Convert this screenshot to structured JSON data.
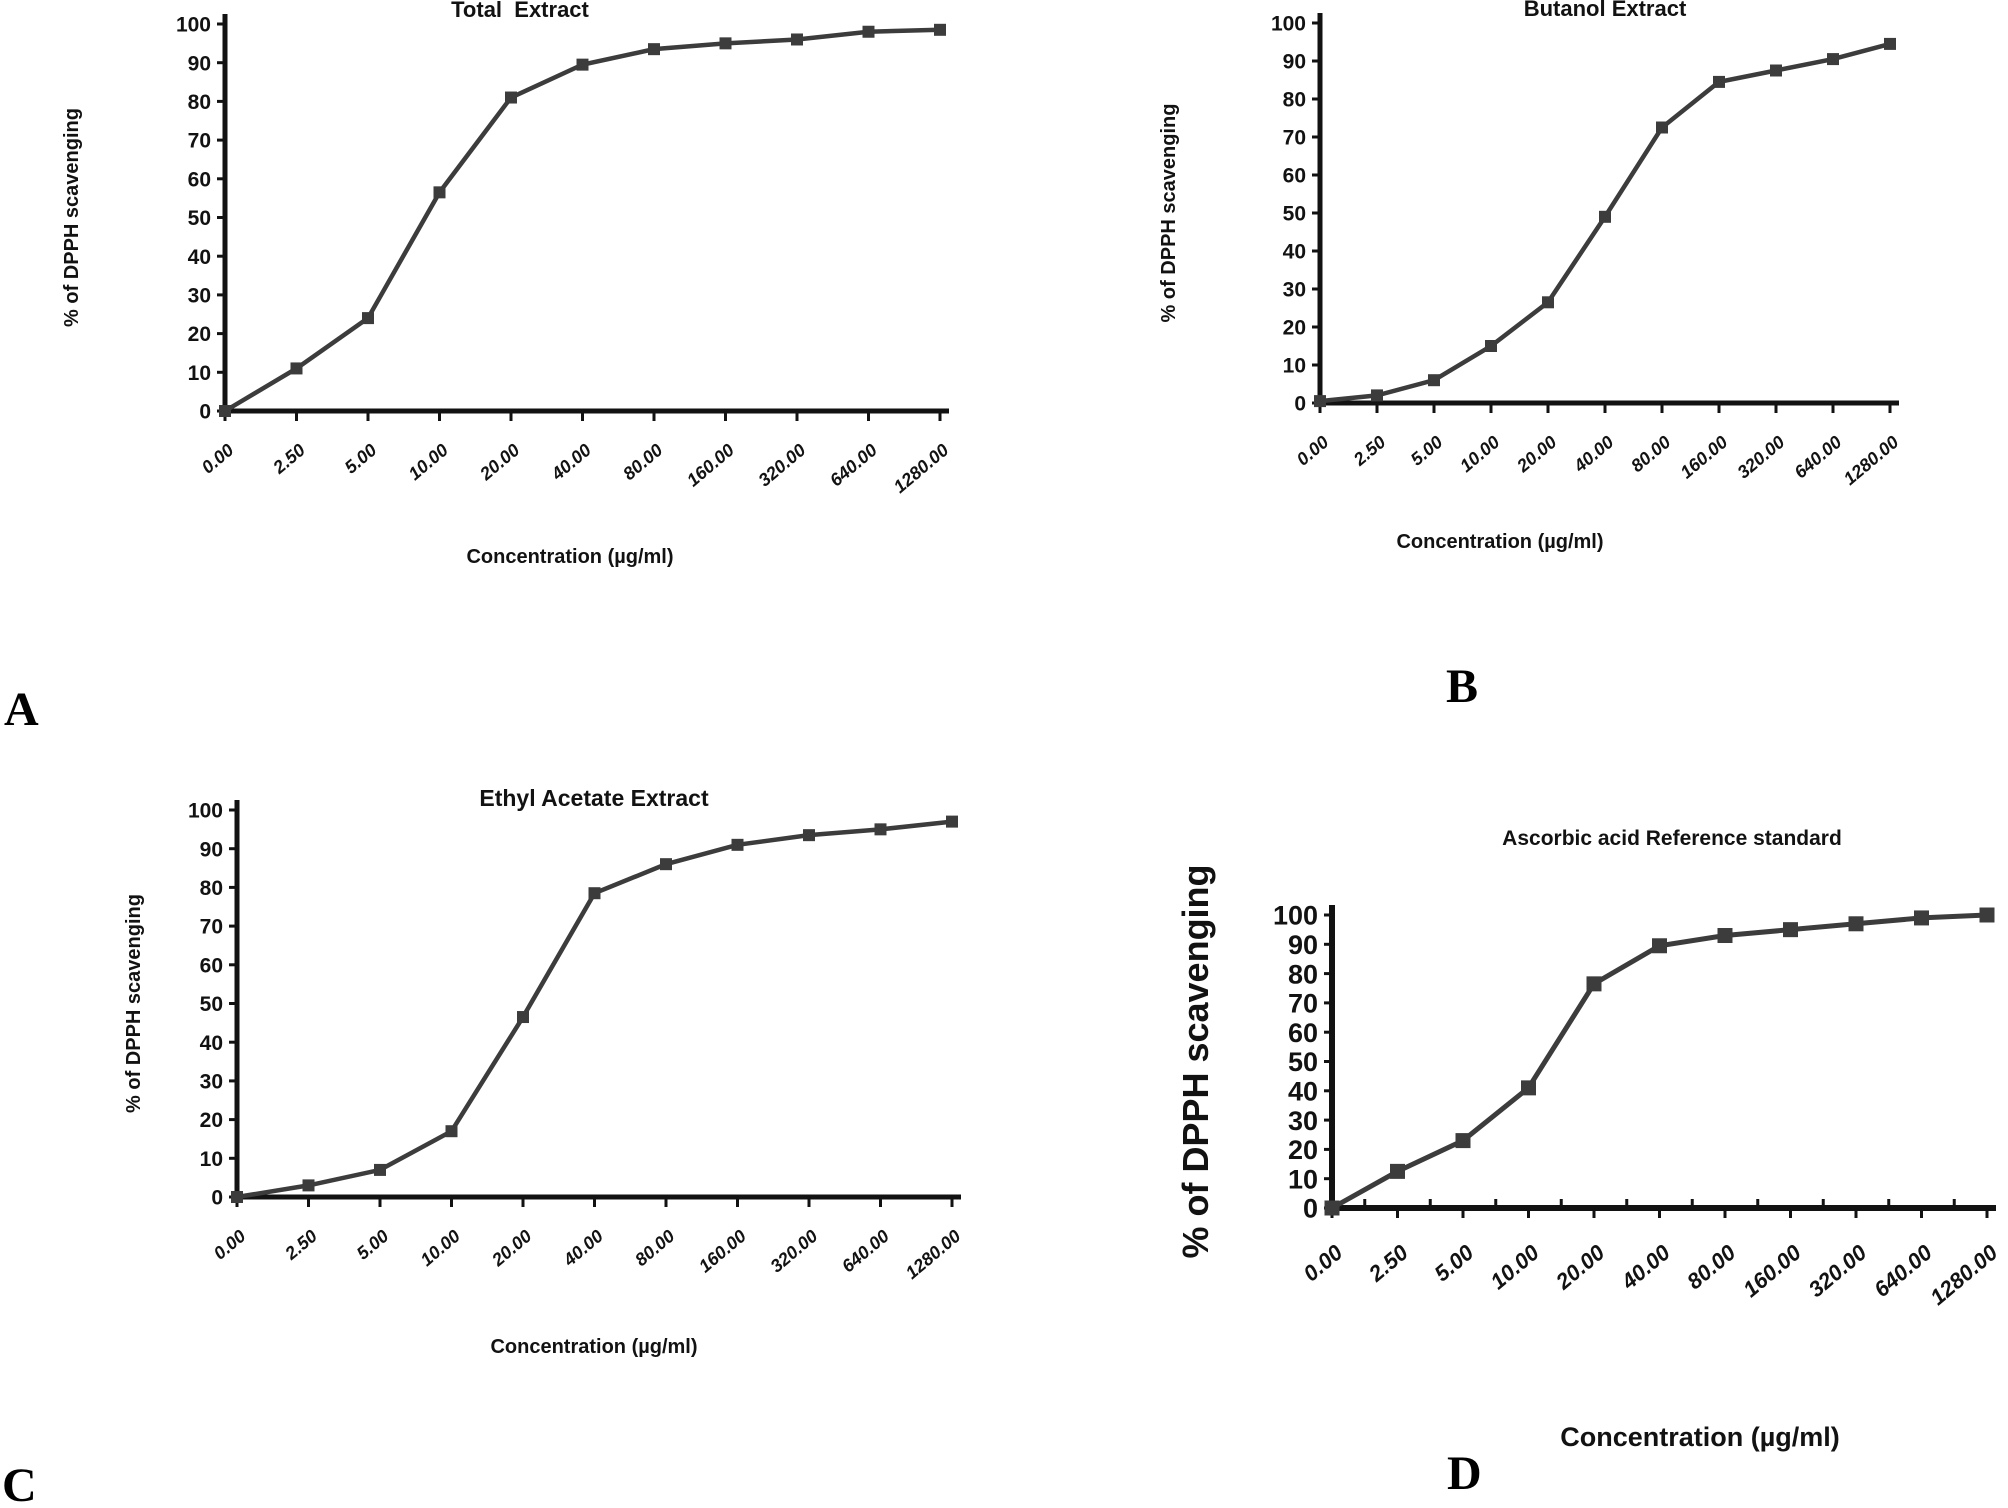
{
  "figure": {
    "background": "#ffffff",
    "axis_color": "#121212",
    "accent_line_color": "#3c3c3c"
  },
  "panel_letters": [
    "A",
    "B",
    "C",
    "D"
  ],
  "chart_data": [
    {
      "type": "line",
      "panel": "A",
      "title": "Total  Extract",
      "xlabel": "Concentration (µg/ml)",
      "ylabel": "% of DPPH scavenging",
      "categories": [
        "0.00",
        "2.50",
        "5.00",
        "10.00",
        "20.00",
        "40.00",
        "80.00",
        "160.00",
        "320.00",
        "640.00",
        "1280.00"
      ],
      "values": [
        0,
        11,
        24,
        56.5,
        81,
        89.5,
        93.5,
        95,
        96,
        98,
        98.5
      ],
      "ylim": [
        0,
        100
      ],
      "ytick_step": 10,
      "grid": false,
      "legend": "none",
      "marker": "filled-square"
    },
    {
      "type": "line",
      "panel": "B",
      "title": "Butanol Extract",
      "xlabel": "Concentration (µg/ml)",
      "ylabel": "% of DPPH scavenging",
      "categories": [
        "0.00",
        "2.50",
        "5.00",
        "10.00",
        "20.00",
        "40.00",
        "80.00",
        "160.00",
        "320.00",
        "640.00",
        "1280.00"
      ],
      "values": [
        0.5,
        2,
        6,
        15,
        26.5,
        49,
        72.5,
        84.5,
        87.5,
        90.5,
        94.5
      ],
      "ylim": [
        0,
        100
      ],
      "ytick_step": 10,
      "grid": false,
      "legend": "none",
      "marker": "filled-square"
    },
    {
      "type": "line",
      "panel": "C",
      "title": "Ethyl Acetate Extract",
      "xlabel": "Concentration (µg/ml)",
      "ylabel": "% of DPPH scavenging",
      "categories": [
        "0.00",
        "2.50",
        "5.00",
        "10.00",
        "20.00",
        "40.00",
        "80.00",
        "160.00",
        "320.00",
        "640.00",
        "1280.00"
      ],
      "values": [
        0,
        3,
        7,
        17,
        46.5,
        78.5,
        86,
        91,
        93.5,
        95,
        97
      ],
      "ylim": [
        0,
        100
      ],
      "ytick_step": 10,
      "grid": false,
      "legend": "none",
      "marker": "filled-square"
    },
    {
      "type": "line",
      "panel": "D",
      "title": "Ascorbic acid Reference standard",
      "xlabel": "Concentration (µg/ml)",
      "ylabel": "% of DPPH scavenging",
      "categories": [
        "0.00",
        "2.50",
        "5.00",
        "10.00",
        "20.00",
        "40.00",
        "80.00",
        "160.00",
        "320.00",
        "640.00",
        "1280.00"
      ],
      "values": [
        0,
        12.5,
        23,
        41,
        76.5,
        89.5,
        93,
        95,
        97,
        99,
        100
      ],
      "ylim": [
        0,
        100
      ],
      "ytick_step": 10,
      "grid": false,
      "legend": "none",
      "marker": "filled-square"
    }
  ]
}
